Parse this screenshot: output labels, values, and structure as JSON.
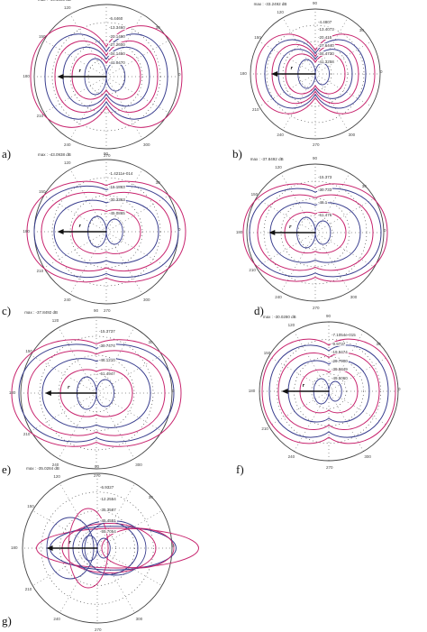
{
  "panels": [
    {
      "letter": "a)",
      "max": "max : -44.1080 dB",
      "levels": [
        "-6.4460",
        "-13.3460",
        "-20.1490",
        "-27.2600",
        "-34.1450",
        "-41.0470"
      ],
      "angles": {
        "a0": "0",
        "a30": "30",
        "a90": "90",
        "a120": "120",
        "a150": "150",
        "a180": "180",
        "a210": "210",
        "a240": "240",
        "a270": "270",
        "a300": "300"
      }
    },
    {
      "letter": "b)",
      "max": "max : -33.2492 dB",
      "levels": [
        "-4.4807",
        "-13.4073",
        "-20.415",
        "-27.6440",
        "-34.4730",
        "-41.3258"
      ],
      "angles": {
        "a0": "0",
        "a30": "30",
        "a90": "90",
        "a120": "120",
        "a150": "150",
        "a180": "180",
        "a210": "210",
        "a240": "240",
        "a270": "270",
        "a300": "300"
      }
    },
    {
      "letter": "c)",
      "max": "max : -43.0938 dB",
      "levels": [
        "-1.4211e-014",
        "-15.1863",
        "-30.3363",
        "-45.0865"
      ],
      "angles": {
        "a0": "0",
        "a30": "30",
        "a90": "90",
        "a120": "120",
        "a150": "150",
        "a180": "180",
        "a210": "210",
        "a240": "240",
        "a270": "270",
        "a300": "300"
      }
    },
    {
      "letter": "d)",
      "max": "max : -37.8492 dB",
      "levels": [
        "-15.373",
        "-30.733",
        "-46.1",
        "-61.476"
      ],
      "angles": {
        "a0": "0",
        "a30": "30",
        "a90": "90",
        "a120": "120",
        "a150": "150",
        "a180": "180",
        "a210": "210",
        "a240": "240",
        "a270": "270",
        "a300": "300"
      }
    },
    {
      "letter": "e)",
      "max": "max : -37.8492 dB",
      "levels": [
        "-15.3737",
        "-30.7474",
        "-46.1210",
        "-61.4947"
      ],
      "angles": {
        "a0": "0",
        "a30": "30",
        "a90": "90",
        "a120": "120",
        "a150": "150",
        "a180": "180",
        "a210": "210",
        "a240": "240",
        "a270": "270",
        "a300": "300"
      }
    },
    {
      "letter": "f)",
      "max": "max : -30.0280 dB",
      "levels": [
        "-7.1054e-015",
        "-9.9737",
        "-19.9474",
        "-29.7900",
        "-39.5849",
        "-49.5060"
      ],
      "angles": {
        "a0": "0",
        "a30": "30",
        "a90": "90",
        "a120": "120",
        "a150": "150",
        "a180": "180",
        "a210": "210",
        "a240": "240",
        "a270": "270",
        "a300": "300"
      }
    },
    {
      "letter": "g)",
      "max": "max : -35.0284 dB",
      "levels": [
        "-6.9327",
        "-12.2554",
        "-35.3587",
        "-45.4551",
        "-55.7054"
      ],
      "angles": {
        "a0": "0",
        "a30": "30",
        "a90": "90",
        "a120": "120",
        "a150": "150",
        "a180": "180",
        "a210": "210",
        "a240": "240",
        "a270": "270",
        "a300": "300"
      }
    }
  ],
  "vector_label": "r",
  "colors": {
    "contour_magenta": "#c8246e",
    "contour_navy": "#3a3f8f",
    "grid_dots": "#333333",
    "circle": "#444444"
  }
}
